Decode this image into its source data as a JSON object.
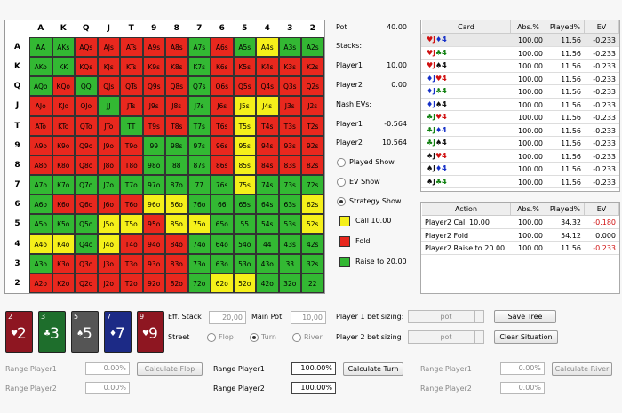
{
  "grid": {
    "columns": [
      "A",
      "K",
      "Q",
      "J",
      "T",
      "9",
      "8",
      "7",
      "6",
      "5",
      "4",
      "3",
      "2"
    ],
    "rows": [
      "A",
      "K",
      "Q",
      "J",
      "T",
      "9",
      "8",
      "7",
      "6",
      "5",
      "4",
      "3",
      "2"
    ],
    "hands": [
      [
        "AA",
        "AKs",
        "AQs",
        "AJs",
        "ATs",
        "A9s",
        "A8s",
        "A7s",
        "A6s",
        "A5s",
        "A4s",
        "A3s",
        "A2s"
      ],
      [
        "AKo",
        "KK",
        "KQs",
        "KJs",
        "KTs",
        "K9s",
        "K8s",
        "K7s",
        "K6s",
        "K5s",
        "K4s",
        "K3s",
        "K2s"
      ],
      [
        "AQo",
        "KQo",
        "QQ",
        "QJs",
        "QTs",
        "Q9s",
        "Q8s",
        "Q7s",
        "Q6s",
        "Q5s",
        "Q4s",
        "Q3s",
        "Q2s"
      ],
      [
        "AJo",
        "KJo",
        "QJo",
        "JJ",
        "JTs",
        "J9s",
        "J8s",
        "J7s",
        "J6s",
        "J5s",
        "J4s",
        "J3s",
        "J2s"
      ],
      [
        "ATo",
        "KTo",
        "QTo",
        "JTo",
        "TT",
        "T9s",
        "T8s",
        "T7s",
        "T6s",
        "T5s",
        "T4s",
        "T3s",
        "T2s"
      ],
      [
        "A9o",
        "K9o",
        "Q9o",
        "J9o",
        "T9o",
        "99",
        "98s",
        "97s",
        "96s",
        "95s",
        "94s",
        "93s",
        "92s"
      ],
      [
        "A8o",
        "K8o",
        "Q8o",
        "J8o",
        "T8o",
        "98o",
        "88",
        "87s",
        "86s",
        "85s",
        "84s",
        "83s",
        "82s"
      ],
      [
        "A7o",
        "K7o",
        "Q7o",
        "J7o",
        "T7o",
        "97o",
        "87o",
        "77",
        "76s",
        "75s",
        "74s",
        "73s",
        "72s"
      ],
      [
        "A6o",
        "K6o",
        "Q6o",
        "J6o",
        "T6o",
        "96o",
        "86o",
        "76o",
        "66",
        "65s",
        "64s",
        "63s",
        "62s"
      ],
      [
        "A5o",
        "K5o",
        "Q5o",
        "J5o",
        "T5o",
        "95o",
        "85o",
        "75o",
        "65o",
        "55",
        "54s",
        "53s",
        "52s"
      ],
      [
        "A4o",
        "K4o",
        "Q4o",
        "J4o",
        "T4o",
        "94o",
        "84o",
        "74o",
        "64o",
        "54o",
        "44",
        "43s",
        "42s"
      ],
      [
        "A3o",
        "K3o",
        "Q3o",
        "J3o",
        "T3o",
        "93o",
        "83o",
        "73o",
        "63o",
        "53o",
        "43o",
        "33",
        "32s"
      ],
      [
        "A2o",
        "K2o",
        "Q2o",
        "J2o",
        "T2o",
        "92o",
        "82o",
        "72o",
        "62o",
        "52o",
        "42o",
        "32o",
        "22"
      ]
    ],
    "colors": [
      [
        "#33b833",
        "#33b833",
        "#e8281e",
        "#e8281e",
        "#e8281e",
        "#e8281e",
        "#e8281e",
        "#33b833",
        "#e8281e",
        "#33b833",
        "#f5f01a",
        "#33b833",
        "#33b833"
      ],
      [
        "#33b833",
        "#33b833",
        "#e8281e",
        "#e8281e",
        "#e8281e",
        "#e8281e",
        "#e8281e",
        "#33b833",
        "#e8281e",
        "#e8281e",
        "#e8281e",
        "#e8281e",
        "#e8281e"
      ],
      [
        "#33b833",
        "#e8281e",
        "#33b833",
        "#e8281e",
        "#e8281e",
        "#e8281e",
        "#e8281e",
        "#33b833",
        "#e8281e",
        "#e8281e",
        "#e8281e",
        "#e8281e",
        "#e8281e"
      ],
      [
        "#e8281e",
        "#e8281e",
        "#e8281e",
        "#33b833",
        "#e8281e",
        "#e8281e",
        "#e8281e",
        "#33b833",
        "#e8281e",
        "#f5f01a",
        "#f5f01a",
        "#e8281e",
        "#e8281e"
      ],
      [
        "#e8281e",
        "#e8281e",
        "#e8281e",
        "#e8281e",
        "#33b833",
        "#e8281e",
        "#e8281e",
        "#33b833",
        "#e8281e",
        "#f5f01a",
        "#e8281e",
        "#e8281e",
        "#e8281e"
      ],
      [
        "#e8281e",
        "#e8281e",
        "#e8281e",
        "#e8281e",
        "#e8281e",
        "#33b833",
        "#33b833",
        "#33b833",
        "#e8281e",
        "#f5f01a",
        "#e8281e",
        "#e8281e",
        "#e8281e"
      ],
      [
        "#e8281e",
        "#e8281e",
        "#e8281e",
        "#e8281e",
        "#e8281e",
        "#33b833",
        "#33b833",
        "#33b833",
        "#e8281e",
        "#f5f01a",
        "#e8281e",
        "#e8281e",
        "#e8281e"
      ],
      [
        "#33b833",
        "#33b833",
        "#33b833",
        "#33b833",
        "#33b833",
        "#33b833",
        "#33b833",
        "#33b833",
        "#33b833",
        "#f5f01a",
        "#33b833",
        "#33b833",
        "#33b833"
      ],
      [
        "#33b833",
        "#e8281e",
        "#e8281e",
        "#e8281e",
        "#e8281e",
        "#f5f01a",
        "#f5f01a",
        "#33b833",
        "#33b833",
        "#33b833",
        "#33b833",
        "#33b833",
        "#f5f01a"
      ],
      [
        "#33b833",
        "#33b833",
        "#33b833",
        "#f5f01a",
        "#f5f01a",
        "#e8281e",
        "#f5f01a",
        "#f5f01a",
        "#33b833",
        "#33b833",
        "#33b833",
        "#33b833",
        "#f5f01a"
      ],
      [
        "#f5f01a",
        "#f5f01a",
        "#33b833",
        "#f5f01a",
        "#e8281e",
        "#e8281e",
        "#e8281e",
        "#33b833",
        "#33b833",
        "#33b833",
        "#33b833",
        "#33b833",
        "#33b833"
      ],
      [
        "#33b833",
        "#e8281e",
        "#e8281e",
        "#e8281e",
        "#e8281e",
        "#e8281e",
        "#e8281e",
        "#33b833",
        "#33b833",
        "#33b833",
        "#33b833",
        "#33b833",
        "#33b833"
      ],
      [
        "#e8281e",
        "#e8281e",
        "#e8281e",
        "#e8281e",
        "#e8281e",
        "#e8281e",
        "#e8281e",
        "#33b833",
        "#f5f01a",
        "#f5f01a",
        "#33b833",
        "#33b833",
        "#33b833"
      ]
    ]
  },
  "info": [
    {
      "label": "Pot",
      "value": "40.00"
    },
    {
      "label": "Stacks:"
    },
    {
      "label": "Player1",
      "value": "10.00"
    },
    {
      "label": "Player2",
      "value": "0.00"
    },
    {
      "label": "Nash EVs:"
    },
    {
      "label": "Player1",
      "value": "-0.564"
    },
    {
      "label": "Player2",
      "value": "10.564"
    }
  ],
  "views": {
    "options": [
      "Played Show",
      "EV Show",
      "Strategy Show"
    ],
    "selected": "Strategy Show"
  },
  "legend": [
    {
      "label": "Call 10.00",
      "color": "#f5f01a"
    },
    {
      "label": "Fold",
      "color": "#e8281e"
    },
    {
      "label": "Raise to 20.00",
      "color": "#33b833"
    }
  ],
  "card_table": {
    "headers": [
      "Card",
      "Abs.%",
      "Played%",
      "EV"
    ],
    "rows": [
      {
        "cards": [
          "♥J",
          "♦4"
        ],
        "cells": [
          "100.00",
          "11.56",
          "-0.233"
        ]
      },
      {
        "cards": [
          "♥J",
          "♣4"
        ],
        "cells": [
          "100.00",
          "11.56",
          "-0.233"
        ]
      },
      {
        "cards": [
          "♥J",
          "♠4"
        ],
        "cells": [
          "100.00",
          "11.56",
          "-0.233"
        ]
      },
      {
        "cards": [
          "♦J",
          "♥4"
        ],
        "cells": [
          "100.00",
          "11.56",
          "-0.233"
        ]
      },
      {
        "cards": [
          "♦J",
          "♣4"
        ],
        "cells": [
          "100.00",
          "11.56",
          "-0.233"
        ]
      },
      {
        "cards": [
          "♦J",
          "♠4"
        ],
        "cells": [
          "100.00",
          "11.56",
          "-0.233"
        ]
      },
      {
        "cards": [
          "♣J",
          "♥4"
        ],
        "cells": [
          "100.00",
          "11.56",
          "-0.233"
        ]
      },
      {
        "cards": [
          "♣J",
          "♦4"
        ],
        "cells": [
          "100.00",
          "11.56",
          "-0.233"
        ]
      },
      {
        "cards": [
          "♣J",
          "♠4"
        ],
        "cells": [
          "100.00",
          "11.56",
          "-0.233"
        ]
      },
      {
        "cards": [
          "♠J",
          "♥4"
        ],
        "cells": [
          "100.00",
          "11.56",
          "-0.233"
        ]
      },
      {
        "cards": [
          "♠J",
          "♦4"
        ],
        "cells": [
          "100.00",
          "11.56",
          "-0.233"
        ]
      },
      {
        "cards": [
          "♠J",
          "♣4"
        ],
        "cells": [
          "100.00",
          "11.56",
          "-0.233"
        ]
      }
    ]
  },
  "action_table": {
    "headers": [
      "Action",
      "Abs.%",
      "Played%",
      "EV"
    ],
    "rows": [
      [
        "Player2 Call 10.00",
        "100.00",
        "34.32",
        "-0.180"
      ],
      [
        "Player2 Fold",
        "100.00",
        "54.12",
        "0.000"
      ],
      [
        "Player2 Raise to 20.00",
        "100.00",
        "11.56",
        "-0.233"
      ]
    ]
  },
  "board": [
    {
      "rank": "2",
      "suit": "♥",
      "color": "#8e1621"
    },
    {
      "rank": "3",
      "suit": "♣",
      "color": "#1e6e2c"
    },
    {
      "rank": "5",
      "suit": "♠",
      "color": "#555555"
    },
    {
      "rank": "7",
      "suit": "♦",
      "color": "#1c2a86"
    },
    {
      "rank": "9",
      "suit": "♥",
      "color": "#8e1621"
    }
  ],
  "controls": {
    "eff_stack": {
      "label": "Eff. Stack",
      "value": "20,00"
    },
    "main_pot": {
      "label": "Main Pot",
      "value": "10,00"
    },
    "street": {
      "label": "Street",
      "options": [
        "Flop",
        "Turn",
        "River"
      ],
      "selected": "Turn"
    },
    "bet_sizing": [
      {
        "label": "Player 1 bet sizing:",
        "value": "pot"
      },
      {
        "label": "Player 2 bet sizing",
        "value": "pot"
      }
    ],
    "buttons": [
      "Save Tree",
      "Clear Situation"
    ],
    "ranges": [
      {
        "label1": "Range Player1",
        "value1": "0.00%",
        "label2": "Range Player2",
        "value2": "0.00%",
        "button": "Calculate Flop"
      },
      {
        "label1": "Range Player1",
        "value1": "100.00%",
        "label2": "Range Player2",
        "value2": "100.00%",
        "button": "Calculate Turn"
      },
      {
        "label1": "Range Player1",
        "value1": "0.00%",
        "label2": "Range Player2",
        "value2": "0.00%",
        "button": "Calculate River"
      }
    ]
  }
}
